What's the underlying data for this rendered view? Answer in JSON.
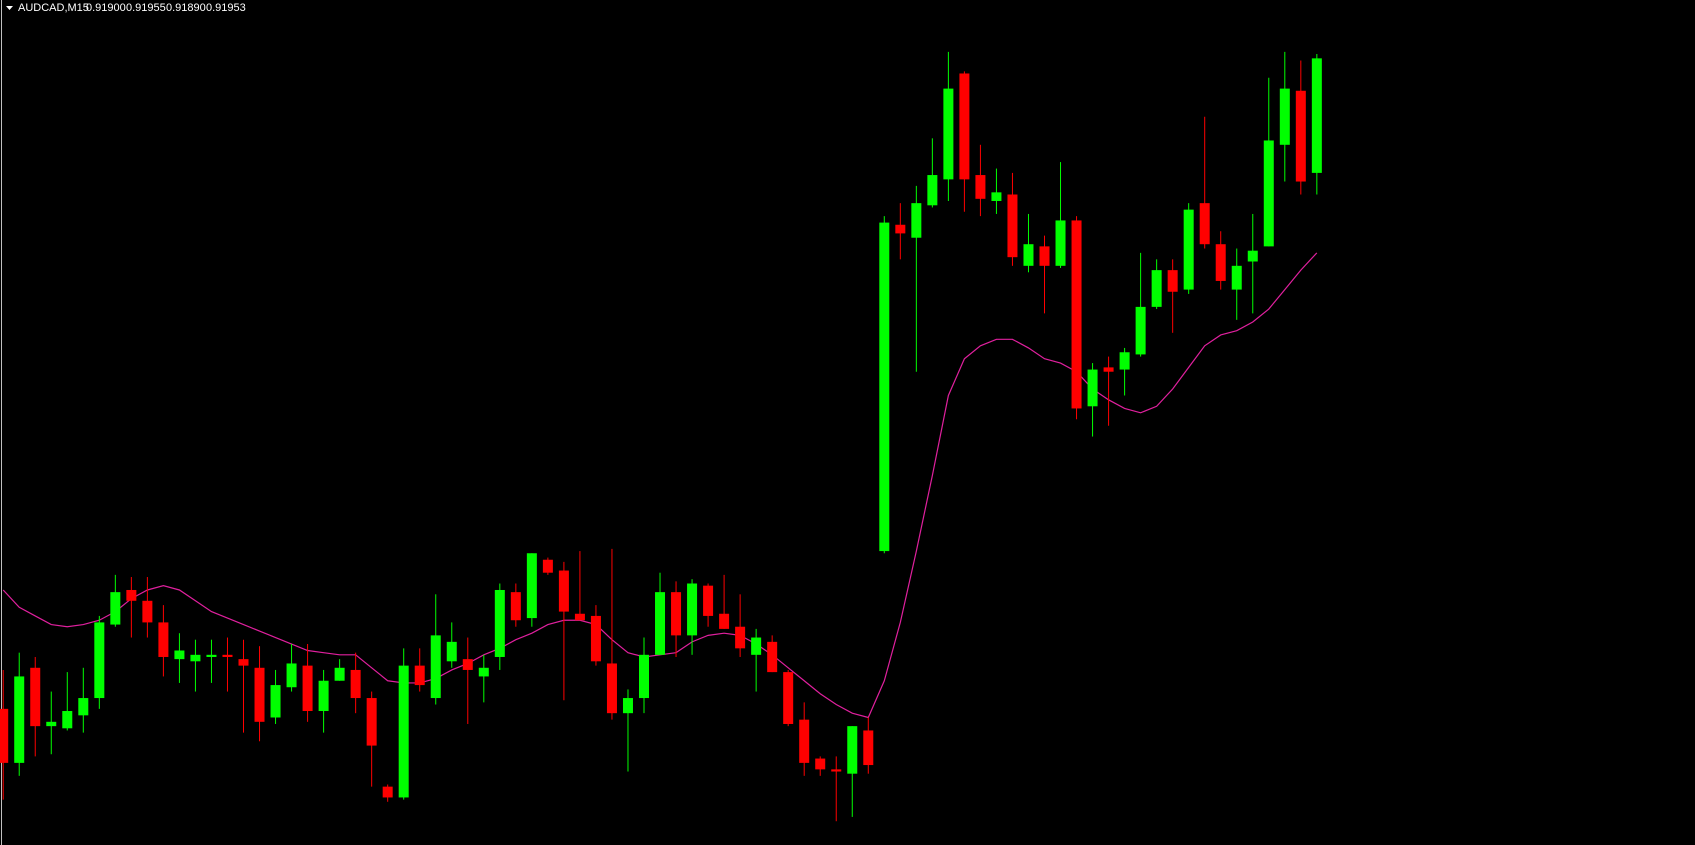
{
  "chart_data": {
    "type": "candlestick",
    "title": "AUDCAD,M15",
    "ohlc_readout": [
      "0.91900",
      "0.91955",
      "0.91890",
      "0.91953"
    ],
    "up_color": "#00ff00",
    "down_color": "#ff0000",
    "ylim": [
      0.91589,
      0.9198
    ],
    "open": [
      0.91652,
      0.91627,
      0.91671,
      0.91644,
      0.91643,
      0.91649,
      0.91657,
      0.91691,
      0.91707,
      0.91702,
      0.91692,
      0.91675,
      0.91674,
      0.91676,
      0.91677,
      0.91675,
      0.91671,
      0.91648,
      0.91662,
      0.91672,
      0.91651,
      0.91665,
      0.9167,
      0.91657,
      0.91616,
      0.91611,
      0.91672,
      0.91657,
      0.91674,
      0.91675,
      0.91667,
      0.91676,
      0.91706,
      0.91694,
      0.91721,
      0.91716,
      0.91696,
      0.91695,
      0.91673,
      0.9165,
      0.91657,
      0.91677,
      0.91706,
      0.91686,
      0.91709,
      0.91696,
      0.9169,
      0.91677,
      0.91683,
      0.91669,
      0.91647,
      0.91629,
      0.91624,
      0.91622,
      0.91642,
      0.91725,
      0.91876,
      0.9187,
      0.91885,
      0.91897,
      0.91946,
      0.91899,
      0.91887,
      0.9189,
      0.91857,
      0.91866,
      0.91857,
      0.91878,
      0.91792,
      0.9181,
      0.91809,
      0.91816,
      0.91838,
      0.91855,
      0.91846,
      0.91886,
      0.91867,
      0.91846,
      0.91859,
      0.91866,
      0.91913,
      0.91938,
      0.919
    ],
    "high": [
      0.9167,
      0.91678,
      0.91676,
      0.9166,
      0.91669,
      0.91671,
      0.91695,
      0.91714,
      0.91713,
      0.91713,
      0.917,
      0.91687,
      0.91684,
      0.91684,
      0.91685,
      0.91684,
      0.91681,
      0.9167,
      0.91682,
      0.91682,
      0.9167,
      0.91675,
      0.91678,
      0.9166,
      0.91617,
      0.9168,
      0.9168,
      0.91705,
      0.91692,
      0.91685,
      0.91677,
      0.9171,
      0.9171,
      0.91724,
      0.91722,
      0.9172,
      0.91725,
      0.917,
      0.91726,
      0.91661,
      0.91685,
      0.91715,
      0.91711,
      0.91712,
      0.9171,
      0.91714,
      0.91705,
      0.91689,
      0.91686,
      0.9167,
      0.91655,
      0.9163,
      0.9163,
      0.91644,
      0.91648,
      0.9188,
      0.91886,
      0.91894,
      0.91916,
      0.91956,
      0.91947,
      0.91913,
      0.91902,
      0.919,
      0.91881,
      0.91871,
      0.91905,
      0.9188,
      0.91812,
      0.91815,
      0.91819,
      0.91863,
      0.9186,
      0.9186,
      0.91886,
      0.91926,
      0.91873,
      0.91865,
      0.91881,
      0.91944,
      0.91956,
      0.91952,
      0.91955
    ],
    "low": [
      0.9161,
      0.91621,
      0.9163,
      0.91631,
      0.91642,
      0.91641,
      0.91652,
      0.9169,
      0.91685,
      0.91685,
      0.91667,
      0.91664,
      0.9166,
      0.91664,
      0.9166,
      0.91641,
      0.91637,
      0.91645,
      0.9166,
      0.91646,
      0.91641,
      0.91665,
      0.9165,
      0.91616,
      0.91609,
      0.9161,
      0.9166,
      0.91654,
      0.91671,
      0.91645,
      0.91655,
      0.9167,
      0.9169,
      0.9169,
      0.91714,
      0.91656,
      0.91694,
      0.91672,
      0.91647,
      0.91623,
      0.9165,
      0.91677,
      0.91676,
      0.91677,
      0.9169,
      0.91689,
      0.91676,
      0.9166,
      0.91669,
      0.91644,
      0.91621,
      0.91621,
      0.916,
      0.91602,
      0.91622,
      0.91724,
      0.9186,
      0.91808,
      0.91884,
      0.91887,
      0.91882,
      0.9188,
      0.91881,
      0.91857,
      0.91854,
      0.91835,
      0.91856,
      0.91786,
      0.91778,
      0.91783,
      0.91797,
      0.91815,
      0.91837,
      0.91826,
      0.91844,
      0.91865,
      0.91846,
      0.91832,
      0.91835,
      0.91866,
      0.91896,
      0.9189,
      0.9189
    ],
    "close": [
      0.91627,
      0.91667,
      0.91644,
      0.91646,
      0.91651,
      0.91657,
      0.91692,
      0.91706,
      0.91702,
      0.91692,
      0.91676,
      0.91679,
      0.91677,
      0.91677,
      0.91676,
      0.91672,
      0.91646,
      0.91663,
      0.91673,
      0.91651,
      0.91665,
      0.91671,
      0.91657,
      0.91635,
      0.91611,
      0.91672,
      0.91663,
      0.91686,
      0.91683,
      0.9167,
      0.91671,
      0.91707,
      0.91693,
      0.91724,
      0.91715,
      0.91697,
      0.91693,
      0.91674,
      0.9165,
      0.91657,
      0.91677,
      0.91706,
      0.91686,
      0.9171,
      0.91695,
      0.91689,
      0.9168,
      0.91685,
      0.91669,
      0.91645,
      0.91627,
      0.91624,
      0.91623,
      0.91644,
      0.91626,
      0.91877,
      0.91872,
      0.91886,
      0.91899,
      0.91939,
      0.91897,
      0.91888,
      0.91891,
      0.91861,
      0.91867,
      0.91857,
      0.91878,
      0.91791,
      0.91809,
      0.91808,
      0.91817,
      0.91838,
      0.91855,
      0.91845,
      0.91883,
      0.91867,
      0.9185,
      0.91857,
      0.91864,
      0.91915,
      0.91939,
      0.91896,
      0.91953
    ],
    "ma": {
      "color": "#e0209e",
      "values": [
        0.91707,
        0.91699,
        0.91695,
        0.91691,
        0.9169,
        0.91691,
        0.91693,
        0.91697,
        0.91703,
        0.91707,
        0.91709,
        0.91707,
        0.91702,
        0.91697,
        0.91694,
        0.91691,
        0.91688,
        0.91685,
        0.91682,
        0.91679,
        0.91678,
        0.91677,
        0.91677,
        0.91671,
        0.91665,
        0.91664,
        0.91664,
        0.91666,
        0.9167,
        0.91673,
        0.91677,
        0.9168,
        0.91684,
        0.91687,
        0.91691,
        0.91693,
        0.91693,
        0.91691,
        0.91684,
        0.91678,
        0.91676,
        0.91677,
        0.91678,
        0.91683,
        0.91686,
        0.91687,
        0.91686,
        0.91682,
        0.91677,
        0.91671,
        0.91665,
        0.91659,
        0.91654,
        0.9165,
        0.91648,
        0.91665,
        0.91692,
        0.91725,
        0.9176,
        0.91797,
        0.91814,
        0.9182,
        0.91823,
        0.91823,
        0.91819,
        0.91814,
        0.91812,
        0.91808,
        0.918,
        0.91795,
        0.91791,
        0.91789,
        0.91792,
        0.918,
        0.9181,
        0.9182,
        0.91825,
        0.91827,
        0.91831,
        0.91837,
        0.91846,
        0.91855,
        0.91863
      ]
    }
  }
}
